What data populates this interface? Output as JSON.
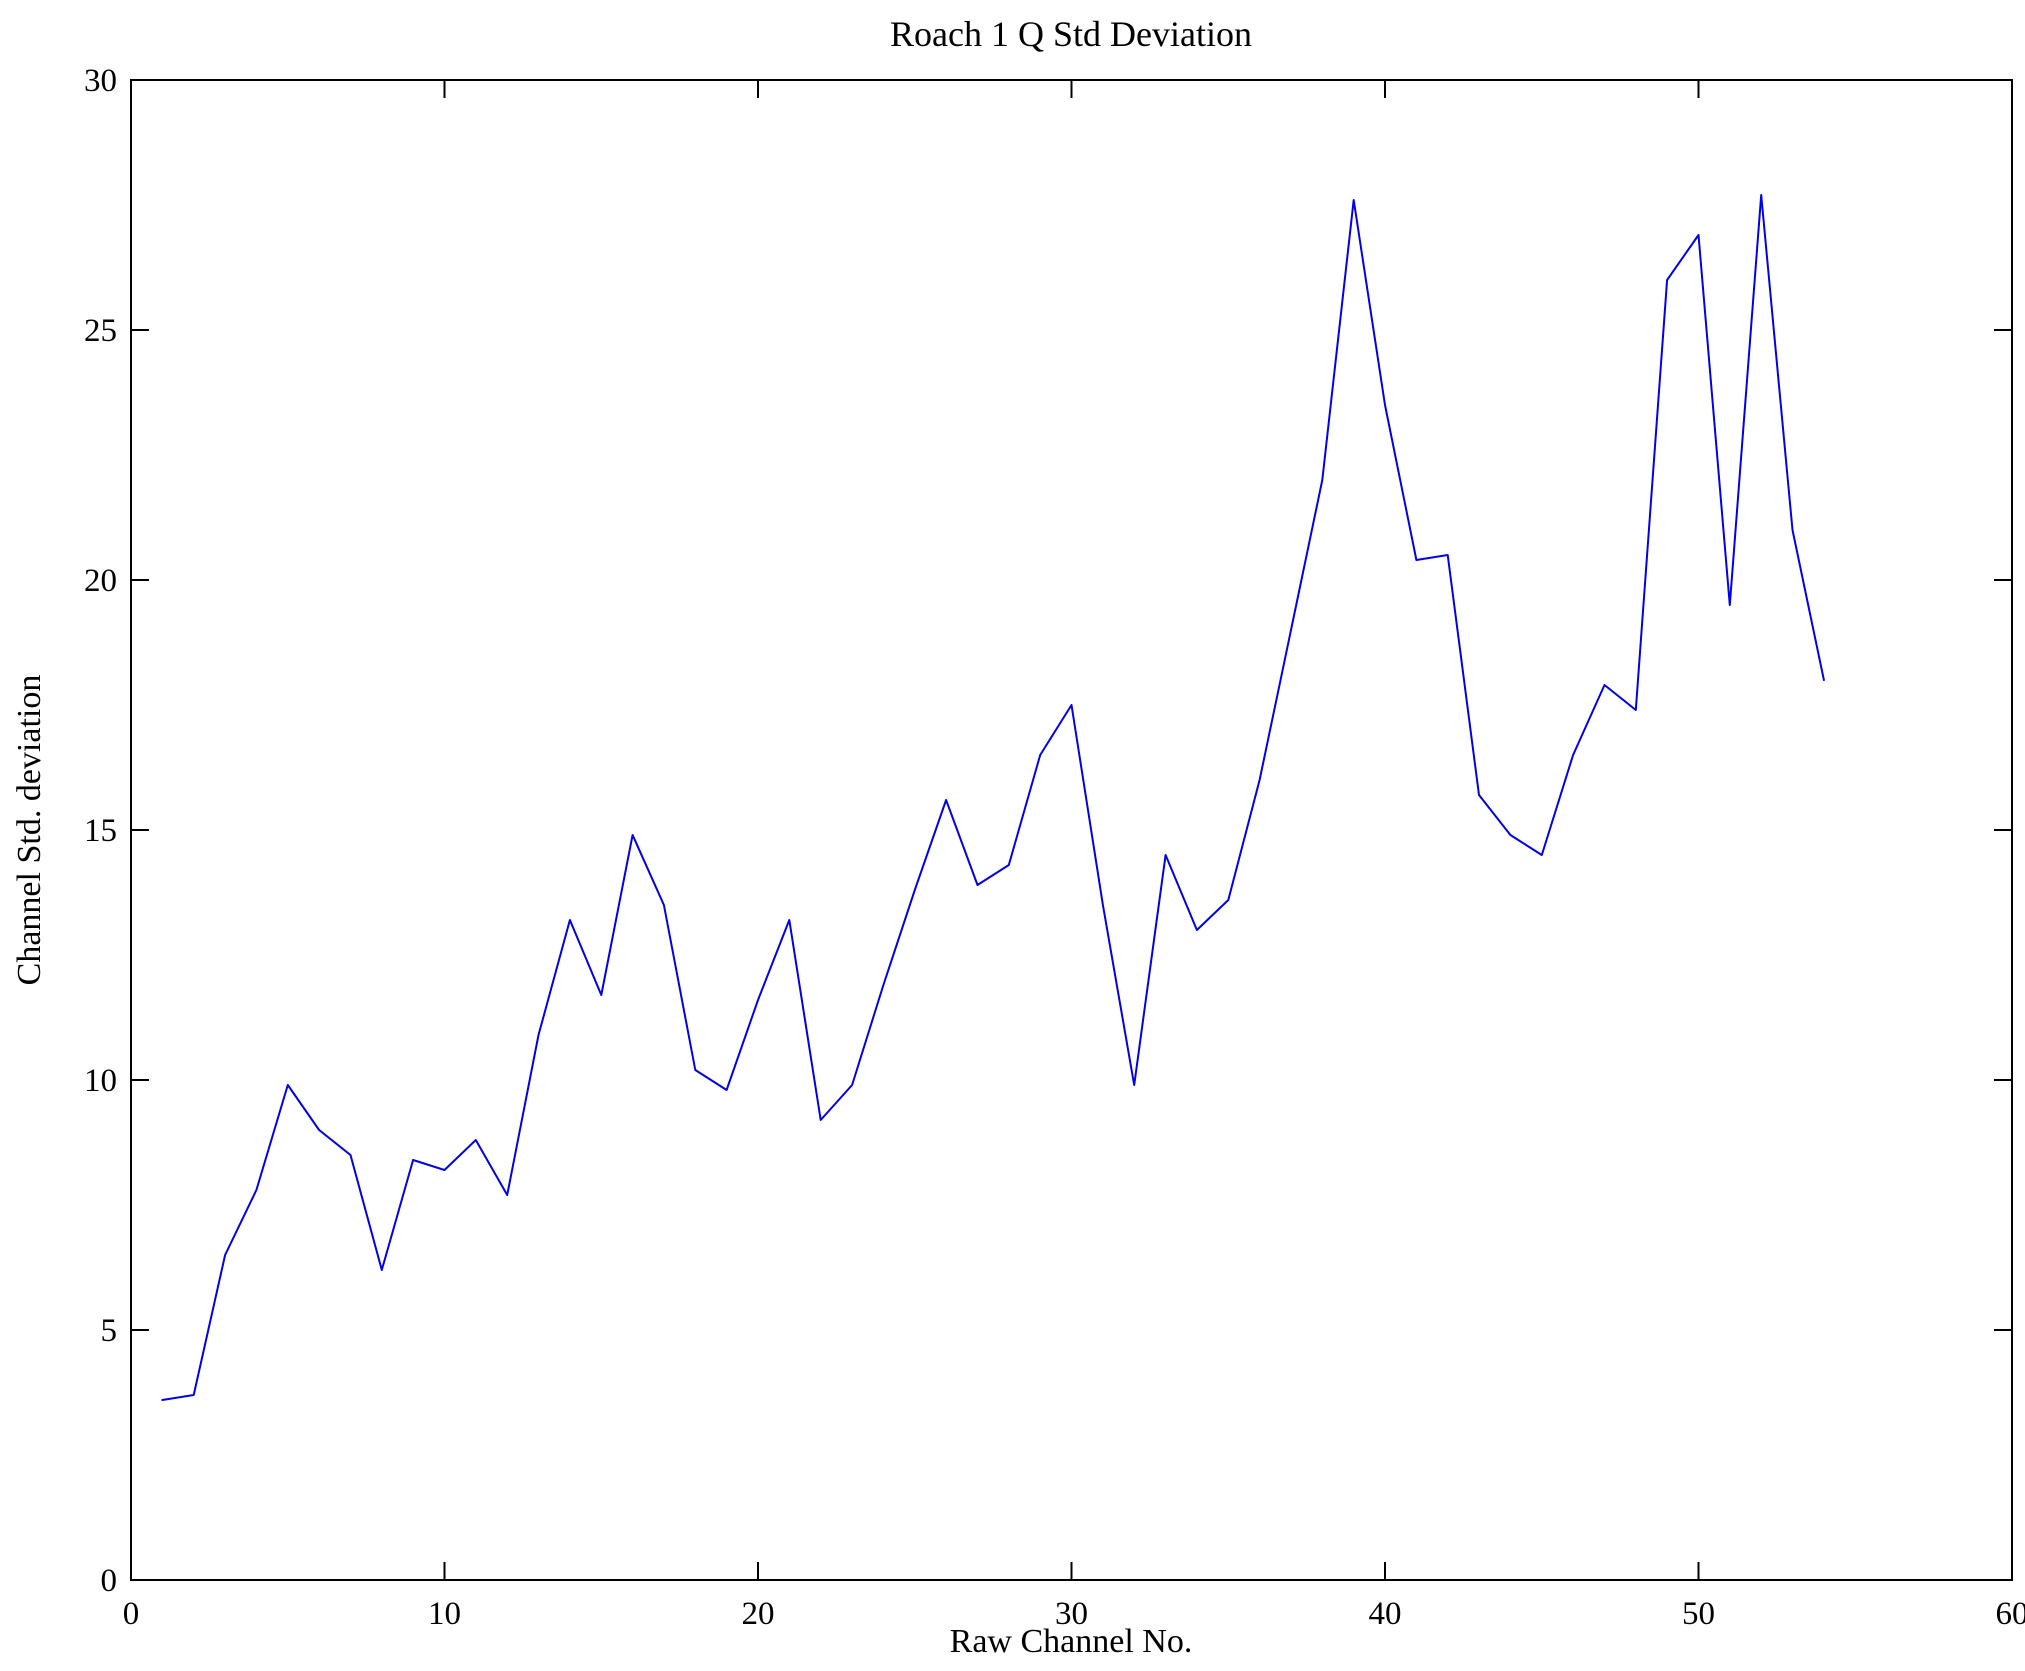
{
  "chart_data": {
    "type": "line",
    "title": "Roach 1 Q Std Deviation",
    "xlabel": "Raw Channel No.",
    "ylabel": "Channel Std. deviation",
    "xlim": [
      0,
      60
    ],
    "ylim": [
      0,
      30
    ],
    "xticks": [
      0,
      10,
      20,
      30,
      40,
      50,
      60
    ],
    "yticks": [
      0,
      5,
      10,
      15,
      20,
      25,
      30
    ],
    "grid": false,
    "legend": null,
    "line_color": "#0000EE",
    "axis_color": "#000000",
    "background_color": "#ffffff",
    "x": [
      1,
      2,
      3,
      4,
      5,
      6,
      7,
      8,
      9,
      10,
      11,
      12,
      13,
      14,
      15,
      16,
      17,
      18,
      19,
      20,
      21,
      22,
      23,
      24,
      25,
      26,
      27,
      28,
      29,
      30,
      31,
      32,
      33,
      34,
      35,
      36,
      37,
      38,
      39,
      40,
      41,
      42,
      43,
      44,
      45,
      46,
      47,
      48,
      49,
      50,
      51,
      52,
      53,
      54
    ],
    "y": [
      3.6,
      3.7,
      6.5,
      7.8,
      9.9,
      9.0,
      8.5,
      6.2,
      8.4,
      8.2,
      8.8,
      7.7,
      10.9,
      13.2,
      11.7,
      14.9,
      13.5,
      10.2,
      9.8,
      11.6,
      13.2,
      9.2,
      9.9,
      11.9,
      13.8,
      15.6,
      13.9,
      14.3,
      16.5,
      17.5,
      13.5,
      9.9,
      14.5,
      13.0,
      13.6,
      16.0,
      19.0,
      22.0,
      27.6,
      23.5,
      20.4,
      20.5,
      15.7,
      14.9,
      14.5,
      16.5,
      17.9,
      17.4,
      26.0,
      26.9,
      19.5,
      27.7,
      21.0,
      18.0
    ]
  }
}
